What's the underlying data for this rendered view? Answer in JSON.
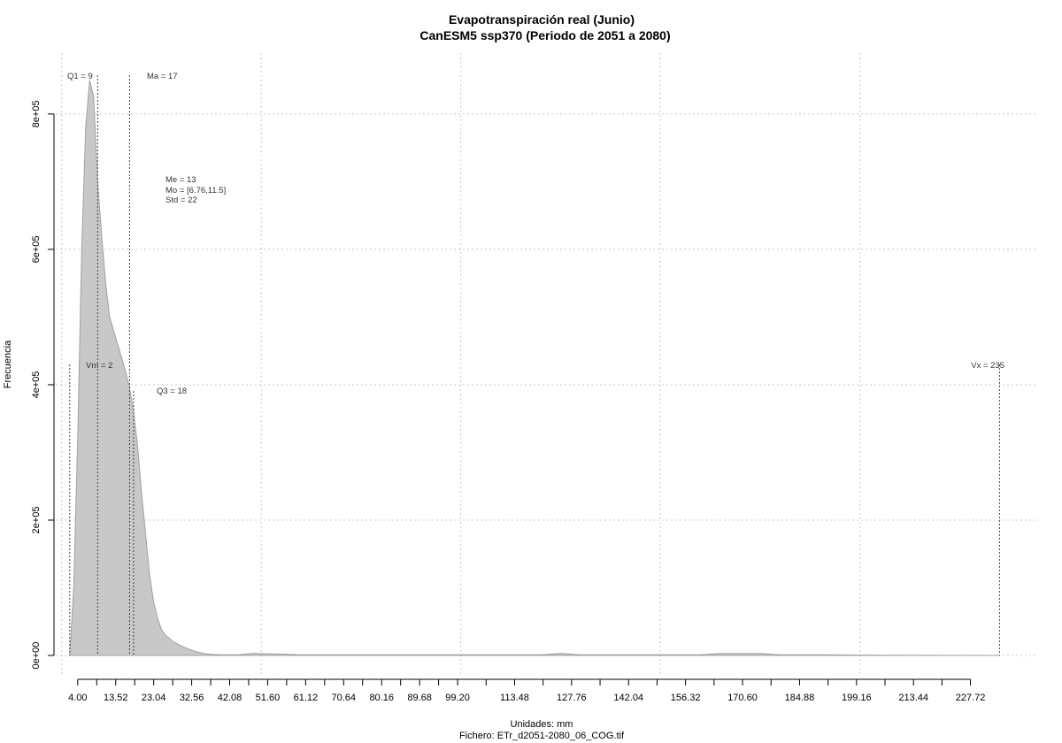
{
  "chart_data": {
    "type": "area",
    "title": "Evapotranspiración real (Junio)",
    "subtitle": "CanESM5 ssp370 (Periodo de 2051 a 2080)",
    "xlabel": "Unidades: mm",
    "caption": "Fichero: ETr_d2051-2080_06_COG.tif",
    "ylabel": "Frecuencia",
    "xlim": [
      -1.5,
      244
    ],
    "ylim": [
      -30000,
      890000
    ],
    "grid": true,
    "y_ticks": [
      0,
      200000,
      400000,
      600000,
      800000
    ],
    "y_tick_labels": [
      "0e+00",
      "2e+05",
      "4e+05",
      "6e+05",
      "8e+05"
    ],
    "x_grid": [
      0,
      50,
      100,
      150,
      200
    ],
    "x_ticks": [
      4.0,
      13.52,
      23.04,
      32.56,
      42.08,
      51.6,
      61.12,
      70.64,
      80.16,
      89.68,
      99.2,
      113.48,
      127.76,
      142.04,
      156.32,
      170.6,
      184.88,
      199.16,
      213.44,
      227.72
    ],
    "x_minor_ticks": [
      8.76,
      18.28,
      27.8,
      37.32,
      46.84,
      56.36,
      65.88,
      75.4,
      84.92,
      94.44,
      106.34,
      120.62,
      134.9,
      149.18,
      163.46,
      177.74,
      192.02,
      206.3,
      220.58
    ],
    "x_tick_labels": [
      "4.00",
      "13.52",
      "23.04",
      "32.56",
      "42.08",
      "51.60",
      "61.12",
      "70.64",
      "80.16",
      "89.68",
      "99.20",
      "113.48",
      "127.76",
      "142.04",
      "156.32",
      "170.60",
      "184.88",
      "199.16",
      "213.44",
      "227.72"
    ],
    "series": [
      {
        "x": [
          2,
          3,
          4,
          5,
          6,
          7,
          8,
          9,
          10,
          11,
          12,
          13,
          14,
          15,
          16,
          17,
          18,
          19,
          20,
          21,
          22,
          23,
          24,
          25,
          26,
          27,
          28,
          30,
          32,
          34,
          36,
          38,
          40,
          44,
          48,
          55,
          60,
          65,
          70,
          80,
          90,
          100,
          110,
          120,
          125,
          130,
          140,
          150,
          160,
          165,
          175,
          180,
          190,
          200,
          220,
          235
        ],
        "y": [
          0,
          100000,
          320000,
          600000,
          780000,
          850000,
          825000,
          700000,
          620000,
          550000,
          500000,
          480000,
          460000,
          440000,
          420000,
          395000,
          360000,
          310000,
          240000,
          180000,
          120000,
          80000,
          55000,
          38000,
          30000,
          25000,
          20000,
          14000,
          9000,
          5000,
          2500,
          1500,
          1000,
          1000,
          3000,
          2000,
          1000,
          1000,
          1000,
          1000,
          1000,
          1000,
          1000,
          1000,
          3000,
          1000,
          1000,
          1000,
          1000,
          3000,
          3000,
          1000,
          1000,
          500,
          300,
          0
        ]
      }
    ],
    "annotations": {
      "q1": "Q1 = 9",
      "ma": "Ma = 17",
      "vm": "Vm = 2",
      "q3": "Q3 = 18",
      "vx": "Vx = 235",
      "me": "Me = 13",
      "mo": "Mo = [6.76,11.5]",
      "std": "Std = 22"
    },
    "vertical_lines": {
      "q1": 9,
      "ma": 17,
      "vm": 2,
      "q3": 18,
      "vx": 235
    },
    "fill_color": "#c8c8c8",
    "line_color": "#a0a0a0"
  }
}
